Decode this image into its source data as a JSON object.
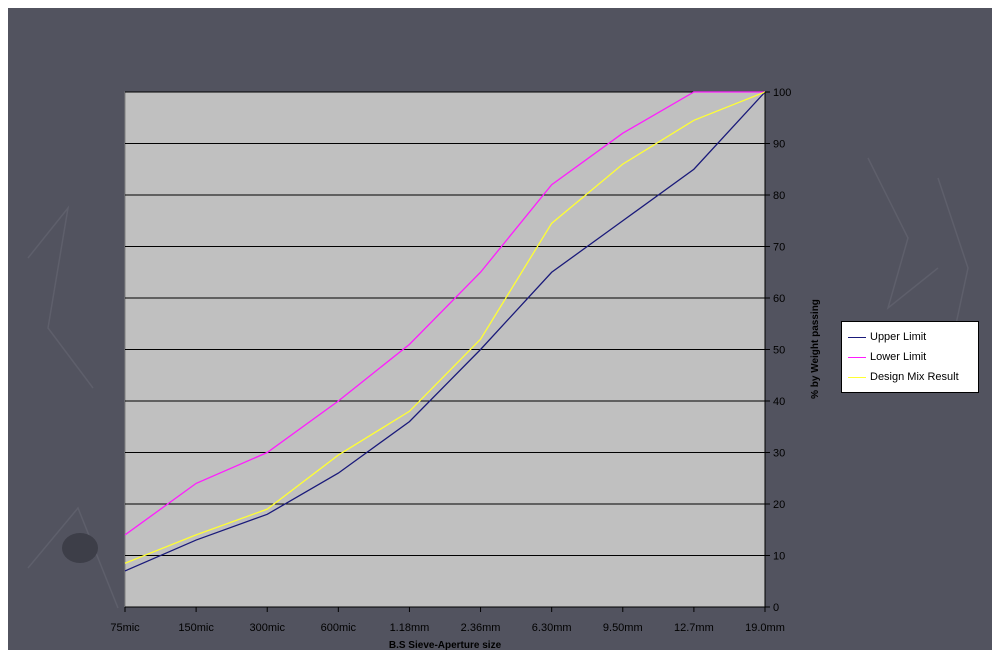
{
  "chart_data": {
    "type": "line",
    "categories": [
      "75mic",
      "150mic",
      "300mic",
      "600mic",
      "1.18mm",
      "2.36mm",
      "6.30mm",
      "9.50mm",
      "12.7mm",
      "19.0mm"
    ],
    "series": [
      {
        "name": "Upper Limit",
        "color": "#1a1a7a",
        "values": [
          7,
          13,
          18,
          26,
          36,
          50,
          65,
          75,
          85,
          100
        ]
      },
      {
        "name": "Lower Limit",
        "color": "#ff1cff",
        "values": [
          14,
          24,
          30,
          40,
          51,
          65,
          82,
          92,
          100,
          100
        ]
      },
      {
        "name": "Design Mix Result",
        "color": "#ffff33",
        "values": [
          8.5,
          14,
          19,
          29.5,
          38,
          52,
          74.5,
          86,
          94.5,
          100
        ]
      }
    ],
    "xlabel": "B.S Sieve-Aperture size",
    "ylabel": "% by Weight passing",
    "ylim": [
      0,
      100
    ],
    "yticks": [
      0,
      10,
      20,
      30,
      40,
      50,
      60,
      70,
      80,
      90,
      100
    ],
    "grid": "horizontal",
    "legend_position": "right",
    "plot_background": "#c0c0c0"
  }
}
